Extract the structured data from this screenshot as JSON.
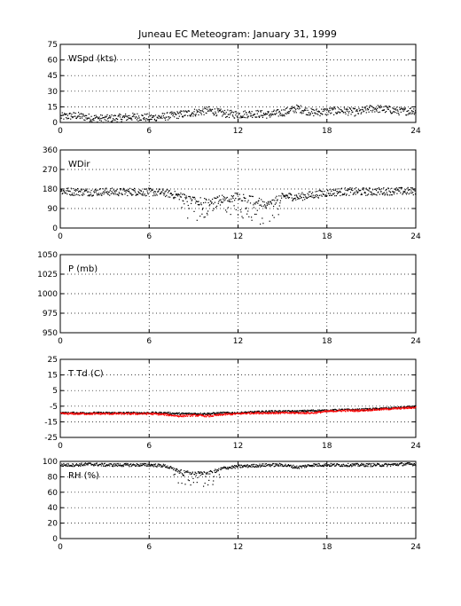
{
  "title": "Juneau EC Meteogram:   January 31, 1999",
  "chart_data": [
    {
      "type": "scatter",
      "label": "WSpd (kts)",
      "xlim": [
        0,
        24
      ],
      "xticks": [
        0,
        6,
        12,
        18,
        24
      ],
      "ylim": [
        0,
        75
      ],
      "yticks": [
        0,
        15,
        30,
        45,
        60,
        75
      ],
      "grid": true,
      "series": [
        {
          "color": "#000000",
          "x": [
            0,
            1,
            2,
            3,
            4,
            5,
            6,
            7,
            8,
            9,
            10,
            11,
            12,
            13,
            14,
            15,
            16,
            17,
            18,
            19,
            20,
            21,
            22,
            23,
            24
          ],
          "y": [
            6,
            7,
            5,
            4,
            5,
            6,
            5,
            6,
            8,
            10,
            12,
            9,
            8,
            9,
            8,
            10,
            14,
            10,
            11,
            12,
            10,
            14,
            13,
            11,
            12
          ]
        }
      ]
    },
    {
      "type": "scatter",
      "label": "WDir",
      "xlim": [
        0,
        24
      ],
      "xticks": [
        0,
        6,
        12,
        18,
        24
      ],
      "ylim": [
        0,
        360
      ],
      "yticks": [
        0,
        90,
        180,
        270,
        360
      ],
      "grid": true,
      "series": [
        {
          "color": "#000000",
          "x": [
            0,
            1,
            2,
            3,
            4,
            5,
            6,
            7,
            8,
            9,
            10,
            11,
            12,
            13,
            14,
            15,
            16,
            17,
            18,
            19,
            20,
            21,
            22,
            23,
            24
          ],
          "y": [
            172,
            170,
            168,
            170,
            168,
            170,
            168,
            165,
            150,
            130,
            120,
            140,
            150,
            130,
            110,
            150,
            145,
            155,
            165,
            170,
            170,
            170,
            172,
            172,
            172
          ]
        }
      ]
    },
    {
      "type": "scatter",
      "label": "P (mb)",
      "xlim": [
        0,
        24
      ],
      "xticks": [
        0,
        6,
        12,
        18,
        24
      ],
      "ylim": [
        950,
        1050
      ],
      "yticks": [
        950,
        975,
        1000,
        1025,
        1050
      ],
      "grid": true,
      "series": []
    },
    {
      "type": "scatter",
      "label": "T Td (C)",
      "xlim": [
        0,
        24
      ],
      "xticks": [
        0,
        6,
        12,
        18,
        24
      ],
      "ylim": [
        -25,
        25
      ],
      "yticks": [
        -25,
        -15,
        -5,
        5,
        15,
        25
      ],
      "grid": true,
      "series": [
        {
          "color": "#000000",
          "x": [
            0,
            1,
            2,
            3,
            4,
            5,
            6,
            7,
            8,
            9,
            10,
            11,
            12,
            13,
            14,
            15,
            16,
            17,
            18,
            19,
            20,
            21,
            22,
            23,
            24
          ],
          "y": [
            -9,
            -9,
            -9,
            -9,
            -9,
            -9,
            -9,
            -9,
            -9.5,
            -9.5,
            -9.5,
            -9,
            -9,
            -8.5,
            -8,
            -8,
            -8,
            -7.5,
            -7.5,
            -7,
            -7,
            -6.5,
            -6,
            -5.5,
            -5
          ]
        },
        {
          "color": "#ff0000",
          "x": [
            0,
            1,
            2,
            3,
            4,
            5,
            6,
            7,
            8,
            9,
            10,
            11,
            12,
            13,
            14,
            15,
            16,
            17,
            18,
            19,
            20,
            21,
            22,
            23,
            24
          ],
          "y": [
            -9.5,
            -9.5,
            -9.5,
            -9.5,
            -9.5,
            -9.5,
            -9.5,
            -10,
            -11,
            -10.5,
            -11,
            -10,
            -9.5,
            -9,
            -9,
            -9,
            -9,
            -9,
            -8,
            -7.5,
            -7.5,
            -7,
            -6.5,
            -6,
            -5.5
          ]
        }
      ]
    },
    {
      "type": "scatter",
      "label": "RH (%)",
      "xlim": [
        0,
        24
      ],
      "xticks": [
        0,
        6,
        12,
        18,
        24
      ],
      "ylim": [
        0,
        100
      ],
      "yticks": [
        0,
        20,
        40,
        60,
        80,
        100
      ],
      "grid": true,
      "series": [
        {
          "color": "#000000",
          "x": [
            0,
            1,
            2,
            3,
            4,
            5,
            6,
            7,
            8,
            9,
            10,
            11,
            12,
            13,
            14,
            15,
            16,
            17,
            18,
            19,
            20,
            21,
            22,
            23,
            24
          ],
          "y": [
            96,
            96,
            97,
            96,
            96,
            96,
            96,
            95,
            88,
            85,
            86,
            92,
            94,
            95,
            96,
            96,
            93,
            96,
            96,
            96,
            96,
            96,
            96,
            97,
            97
          ]
        }
      ]
    }
  ]
}
